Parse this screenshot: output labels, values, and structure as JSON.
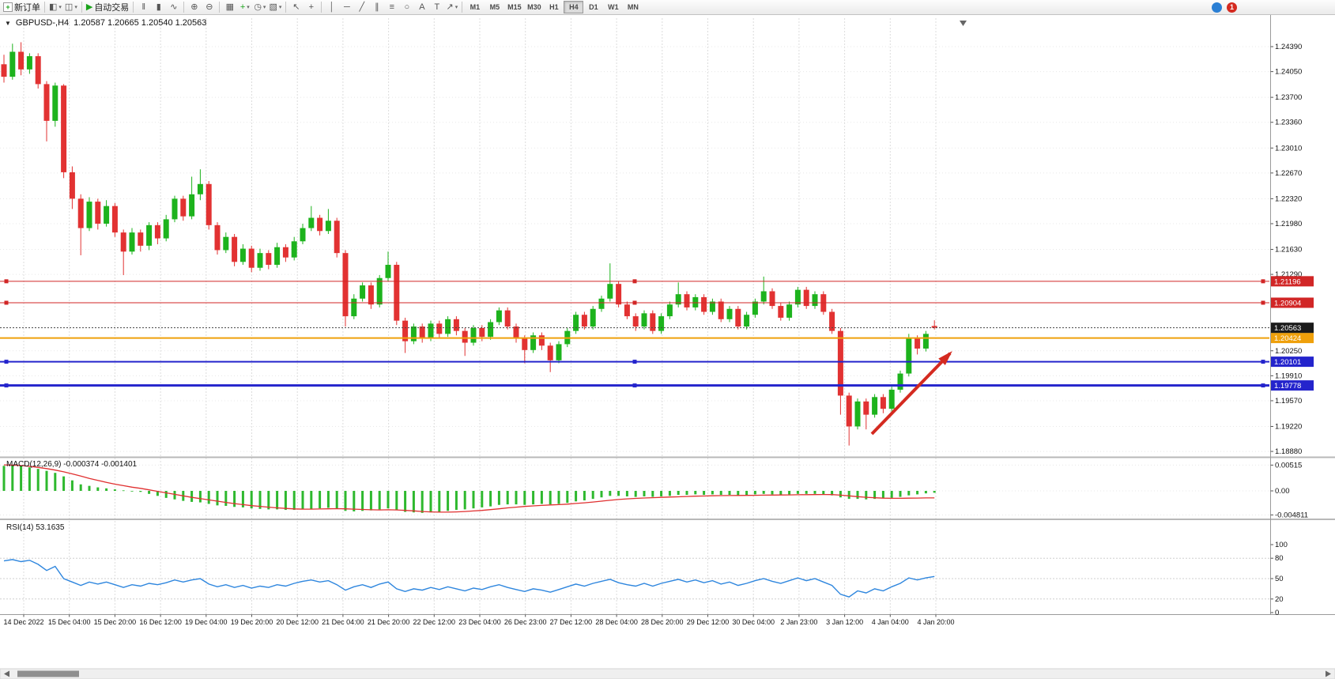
{
  "toolbar": {
    "new_order_label": "新订单",
    "autotrading_label": "自动交易",
    "timeframes": [
      "M1",
      "M5",
      "M15",
      "M30",
      "H1",
      "H4",
      "D1",
      "W1",
      "MN"
    ],
    "active_timeframe": "H4",
    "notification_count": "1"
  },
  "icons": {
    "new_order": "+",
    "new_chart": "◧",
    "profiles": "◫",
    "play": "▶",
    "bar_chart": "‖",
    "candle_chart": "▮",
    "line_chart": "∿",
    "zoom_in": "⊕",
    "zoom_out": "⊖",
    "tile": "▦",
    "indicators": "+",
    "periods": "◷",
    "templates": "▧",
    "caret": "▾",
    "cursor": "↖",
    "crosshair": "+",
    "vline": "│",
    "hline": "─",
    "trendline": "╱",
    "channel": "∥",
    "fibonacci": "≡",
    "shapes": "○",
    "text": "A",
    "text_label": "T",
    "arrows": "↗"
  },
  "chart": {
    "symbol_label": "GBPUSD-,H4",
    "ohlc": "1.20587 1.20665 1.20540 1.20563",
    "macd_label": "MACD(12,26,9)",
    "macd_values": "-0.000374 -0.001401",
    "rsi_label": "RSI(14)",
    "rsi_value": "53.1635"
  },
  "chart_data": {
    "type": "candlestick",
    "symbol": "GBPUSD",
    "timeframe": "H4",
    "x_labels": [
      "14 Dec 2022",
      "15 Dec 04:00",
      "15 Dec 20:00",
      "16 Dec 12:00",
      "19 Dec 04:00",
      "19 Dec 20:00",
      "20 Dec 12:00",
      "21 Dec 04:00",
      "21 Dec 20:00",
      "22 Dec 12:00",
      "23 Dec 04:00",
      "26 Dec 23:00",
      "27 Dec 12:00",
      "28 Dec 04:00",
      "28 Dec 20:00",
      "29 Dec 12:00",
      "30 Dec 04:00",
      "2 Jan 23:00",
      "3 Jan 12:00",
      "4 Jan 04:00",
      "4 Jan 20:00"
    ],
    "price_axis": [
      "1.24390",
      "1.24050",
      "1.23700",
      "1.23360",
      "1.23010",
      "1.22670",
      "1.22320",
      "1.21980",
      "1.21630",
      "1.21290",
      "1.20250",
      "1.19910",
      "1.19570",
      "1.19220",
      "1.18880"
    ],
    "current_price": 1.20563,
    "current_price_label": "1.20563",
    "hlines": [
      {
        "price": 1.21196,
        "label": "1.21196",
        "color": "#d12626",
        "width": 1,
        "handles": true
      },
      {
        "price": 1.20904,
        "label": "1.20904",
        "color": "#d12626",
        "width": 1,
        "handles": true
      },
      {
        "price": 1.20424,
        "label": "1.20424",
        "color": "#efa00b",
        "width": 2,
        "handles": false
      },
      {
        "price": 1.20101,
        "label": "1.20101",
        "color": "#2424cc",
        "width": 2,
        "handles": true
      },
      {
        "price": 1.19778,
        "label": "1.19778",
        "color": "#2424cc",
        "width": 3,
        "handles": true
      }
    ],
    "candles": [
      [
        1.2415,
        1.2428,
        1.239,
        1.2398
      ],
      [
        1.2398,
        1.2443,
        1.2394,
        1.2432
      ],
      [
        1.2432,
        1.2445,
        1.24,
        1.2408
      ],
      [
        1.2408,
        1.243,
        1.2402,
        1.2426
      ],
      [
        1.2426,
        1.243,
        1.2382,
        1.2388
      ],
      [
        1.2388,
        1.2392,
        1.231,
        1.2338
      ],
      [
        1.2338,
        1.239,
        1.233,
        1.2386
      ],
      [
        1.2386,
        1.2388,
        1.226,
        1.2268
      ],
      [
        1.2268,
        1.2276,
        1.2218,
        1.2232
      ],
      [
        1.2232,
        1.2238,
        1.2155,
        1.2192
      ],
      [
        1.2192,
        1.2234,
        1.2188,
        1.2228
      ],
      [
        1.2228,
        1.2232,
        1.219,
        1.2198
      ],
      [
        1.2198,
        1.223,
        1.2194,
        1.2222
      ],
      [
        1.2222,
        1.2226,
        1.218,
        1.2186
      ],
      [
        1.2186,
        1.219,
        1.2128,
        1.216
      ],
      [
        1.216,
        1.2192,
        1.2156,
        1.2186
      ],
      [
        1.2186,
        1.219,
        1.216,
        1.2168
      ],
      [
        1.2168,
        1.22,
        1.2162,
        1.2196
      ],
      [
        1.2196,
        1.22,
        1.217,
        1.2178
      ],
      [
        1.2178,
        1.221,
        1.2174,
        1.2204
      ],
      [
        1.2204,
        1.2236,
        1.22,
        1.2232
      ],
      [
        1.2232,
        1.2236,
        1.2202,
        1.2208
      ],
      [
        1.2208,
        1.2262,
        1.2204,
        1.2238
      ],
      [
        1.2238,
        1.2272,
        1.223,
        1.2252
      ],
      [
        1.2252,
        1.2256,
        1.219,
        1.2196
      ],
      [
        1.2196,
        1.22,
        1.2156,
        1.2162
      ],
      [
        1.2162,
        1.2186,
        1.2158,
        1.218
      ],
      [
        1.218,
        1.2184,
        1.214,
        1.2146
      ],
      [
        1.2146,
        1.217,
        1.2142,
        1.2164
      ],
      [
        1.2164,
        1.2168,
        1.2132,
        1.2138
      ],
      [
        1.2138,
        1.2164,
        1.2134,
        1.2158
      ],
      [
        1.2158,
        1.2162,
        1.2136,
        1.2142
      ],
      [
        1.2142,
        1.2172,
        1.2138,
        1.2166
      ],
      [
        1.2166,
        1.217,
        1.2146,
        1.2152
      ],
      [
        1.2152,
        1.218,
        1.2148,
        1.2174
      ],
      [
        1.2174,
        1.2198,
        1.217,
        1.2192
      ],
      [
        1.2192,
        1.2222,
        1.2188,
        1.2206
      ],
      [
        1.2206,
        1.221,
        1.2182,
        1.2188
      ],
      [
        1.2188,
        1.2218,
        1.2184,
        1.2202
      ],
      [
        1.2202,
        1.2206,
        1.2152,
        1.2158
      ],
      [
        1.2158,
        1.2162,
        1.2058,
        1.2072
      ],
      [
        1.2072,
        1.2102,
        1.2068,
        1.2096
      ],
      [
        1.2096,
        1.2118,
        1.2092,
        1.2114
      ],
      [
        1.2114,
        1.2118,
        1.2082,
        1.2088
      ],
      [
        1.2088,
        1.2128,
        1.2084,
        1.2124
      ],
      [
        1.2124,
        1.216,
        1.212,
        1.2142
      ],
      [
        1.2142,
        1.2146,
        1.206,
        1.2066
      ],
      [
        1.2066,
        1.207,
        1.2022,
        1.2038
      ],
      [
        1.2038,
        1.2062,
        1.2034,
        1.2058
      ],
      [
        1.2058,
        1.2062,
        1.2036,
        1.2042
      ],
      [
        1.2042,
        1.2066,
        1.2038,
        1.2062
      ],
      [
        1.2062,
        1.2066,
        1.2042,
        1.2048
      ],
      [
        1.2048,
        1.2072,
        1.2044,
        1.2068
      ],
      [
        1.2068,
        1.2072,
        1.2046,
        1.2052
      ],
      [
        1.2052,
        1.2056,
        1.2018,
        1.2036
      ],
      [
        1.2036,
        1.206,
        1.2032,
        1.2056
      ],
      [
        1.2056,
        1.206,
        1.2038,
        1.2044
      ],
      [
        1.2044,
        1.2068,
        1.204,
        1.2064
      ],
      [
        1.2064,
        1.2084,
        1.206,
        1.208
      ],
      [
        1.208,
        1.2084,
        1.2054,
        1.2058
      ],
      [
        1.2058,
        1.2062,
        1.2036,
        1.2042
      ],
      [
        1.2042,
        1.2046,
        1.2008,
        1.2026
      ],
      [
        1.2026,
        1.205,
        1.2022,
        1.2046
      ],
      [
        1.2046,
        1.205,
        1.2026,
        1.2032
      ],
      [
        1.2032,
        1.2036,
        1.1996,
        1.2012
      ],
      [
        1.2012,
        1.2038,
        1.2008,
        1.2034
      ],
      [
        1.2034,
        1.2056,
        1.203,
        1.2052
      ],
      [
        1.2052,
        1.2078,
        1.2048,
        1.2074
      ],
      [
        1.2074,
        1.2078,
        1.2054,
        1.2058
      ],
      [
        1.2058,
        1.2086,
        1.2054,
        1.2082
      ],
      [
        1.2082,
        1.21,
        1.2078,
        1.2096
      ],
      [
        1.2096,
        1.2144,
        1.2092,
        1.2116
      ],
      [
        1.2116,
        1.212,
        1.2084,
        1.2088
      ],
      [
        1.2088,
        1.2092,
        1.2068,
        1.2072
      ],
      [
        1.2072,
        1.2076,
        1.2052,
        1.2058
      ],
      [
        1.2058,
        1.208,
        1.2054,
        1.2076
      ],
      [
        1.2076,
        1.208,
        1.2048,
        1.2052
      ],
      [
        1.2052,
        1.2076,
        1.2048,
        1.2072
      ],
      [
        1.2072,
        1.2092,
        1.2068,
        1.2088
      ],
      [
        1.2088,
        1.2118,
        1.2084,
        1.2102
      ],
      [
        1.2102,
        1.2106,
        1.208,
        1.2084
      ],
      [
        1.2084,
        1.2102,
        1.208,
        1.2098
      ],
      [
        1.2098,
        1.2102,
        1.2074,
        1.2078
      ],
      [
        1.2078,
        1.2096,
        1.2074,
        1.2092
      ],
      [
        1.2092,
        1.2096,
        1.2064,
        1.2068
      ],
      [
        1.2068,
        1.2086,
        1.2064,
        1.2082
      ],
      [
        1.2082,
        1.2086,
        1.2054,
        1.2058
      ],
      [
        1.2058,
        1.2078,
        1.2054,
        1.2074
      ],
      [
        1.2074,
        1.2096,
        1.207,
        1.2092
      ],
      [
        1.2092,
        1.2126,
        1.2088,
        1.2106
      ],
      [
        1.2106,
        1.211,
        1.2082,
        1.2086
      ],
      [
        1.2086,
        1.209,
        1.2066,
        1.207
      ],
      [
        1.207,
        1.2092,
        1.2066,
        1.2088
      ],
      [
        1.2088,
        1.2112,
        1.2084,
        1.2108
      ],
      [
        1.2108,
        1.2112,
        1.2082,
        1.2086
      ],
      [
        1.2086,
        1.2106,
        1.2082,
        1.2102
      ],
      [
        1.2102,
        1.2106,
        1.2074,
        1.2078
      ],
      [
        1.2078,
        1.2082,
        1.2048,
        1.2052
      ],
      [
        1.2052,
        1.2056,
        1.1938,
        1.1964
      ],
      [
        1.1964,
        1.1968,
        1.1896,
        1.1922
      ],
      [
        1.1922,
        1.196,
        1.1918,
        1.1956
      ],
      [
        1.1956,
        1.196,
        1.1918,
        1.1938
      ],
      [
        1.1938,
        1.1966,
        1.1934,
        1.1962
      ],
      [
        1.1962,
        1.1966,
        1.194,
        1.1946
      ],
      [
        1.1946,
        1.1976,
        1.1942,
        1.1972
      ],
      [
        1.1972,
        1.1998,
        1.1968,
        1.1994
      ],
      [
        1.1994,
        1.2048,
        1.199,
        1.2042
      ],
      [
        1.2042,
        1.2046,
        1.202,
        1.2028
      ],
      [
        1.2028,
        1.2052,
        1.2024,
        1.2048
      ],
      [
        1.20587,
        1.20665,
        1.2054,
        1.20563
      ]
    ],
    "indicators": {
      "macd": {
        "axis": [
          "0.00515",
          "0.00",
          "-0.004811"
        ],
        "histogram": [
          0.005,
          0.00512,
          0.00495,
          0.0047,
          0.0044,
          0.004,
          0.0036,
          0.0029,
          0.0021,
          0.0013,
          0.001,
          0.0007,
          0.0005,
          0.0003,
          0.0001,
          0.0,
          -0.0002,
          -0.0006,
          -0.001,
          -0.0014,
          -0.0017,
          -0.002,
          -0.0022,
          -0.0023,
          -0.0026,
          -0.0029,
          -0.003,
          -0.0032,
          -0.0033,
          -0.0035,
          -0.0036,
          -0.0037,
          -0.0037,
          -0.0038,
          -0.0038,
          -0.0037,
          -0.0036,
          -0.0035,
          -0.0034,
          -0.0036,
          -0.004,
          -0.0041,
          -0.004,
          -0.0039,
          -0.0037,
          -0.0035,
          -0.0038,
          -0.0042,
          -0.0043,
          -0.0044,
          -0.0043,
          -0.0042,
          -0.004,
          -0.0038,
          -0.0037,
          -0.0035,
          -0.0033,
          -0.0031,
          -0.0028,
          -0.0027,
          -0.0027,
          -0.0028,
          -0.0027,
          -0.0026,
          -0.0027,
          -0.0026,
          -0.0024,
          -0.0021,
          -0.0019,
          -0.0016,
          -0.0013,
          -0.001,
          -0.001,
          -0.0011,
          -0.0012,
          -0.0011,
          -0.0012,
          -0.0011,
          -0.001,
          -0.0008,
          -0.0008,
          -0.0007,
          -0.0008,
          -0.0007,
          -0.0008,
          -0.0008,
          -0.0009,
          -0.0008,
          -0.0007,
          -0.0006,
          -0.0007,
          -0.0008,
          -0.0007,
          -0.0006,
          -0.0006,
          -0.0006,
          -0.0007,
          -0.0009,
          -0.0013,
          -0.0016,
          -0.0016,
          -0.0017,
          -0.0016,
          -0.0015,
          -0.0014,
          -0.0012,
          -0.0009,
          -0.0007,
          -0.0005,
          -0.000374
        ],
        "signal": [
          0.0052,
          0.00515,
          0.00505,
          0.0049,
          0.0047,
          0.00445,
          0.00415,
          0.0038,
          0.0034,
          0.00295,
          0.0025,
          0.0021,
          0.0017,
          0.00135,
          0.00105,
          0.00075,
          0.0005,
          0.0002,
          -0.0001,
          -0.0004,
          -0.0007,
          -0.001,
          -0.0013,
          -0.00155,
          -0.0018,
          -0.00205,
          -0.0023,
          -0.00255,
          -0.00275,
          -0.00295,
          -0.0031,
          -0.00325,
          -0.0034,
          -0.0035,
          -0.0036,
          -0.00365,
          -0.00365,
          -0.00362,
          -0.00358,
          -0.00355,
          -0.00358,
          -0.00365,
          -0.00372,
          -0.00378,
          -0.0038,
          -0.00378,
          -0.0038,
          -0.0039,
          -0.004,
          -0.00412,
          -0.0042,
          -0.00425,
          -0.00425,
          -0.0042,
          -0.00412,
          -0.00402,
          -0.0039,
          -0.00375,
          -0.00358,
          -0.0034,
          -0.00325,
          -0.00312,
          -0.003,
          -0.0029,
          -0.00282,
          -0.00275,
          -0.00265,
          -0.00252,
          -0.00238,
          -0.00222,
          -0.00205,
          -0.00188,
          -0.00172,
          -0.0016,
          -0.0015,
          -0.00142,
          -0.00136,
          -0.0013,
          -0.00124,
          -0.00118,
          -0.00112,
          -0.00106,
          -0.00102,
          -0.00098,
          -0.00095,
          -0.00093,
          -0.00092,
          -0.0009,
          -0.00088,
          -0.00085,
          -0.00083,
          -0.00082,
          -0.0008,
          -0.00078,
          -0.00076,
          -0.00074,
          -0.00073,
          -0.00075,
          -0.00085,
          -0.001,
          -0.00115,
          -0.00128,
          -0.00138,
          -0.00145,
          -0.00148,
          -0.00148,
          -0.00146,
          -0.00143,
          -0.00141,
          -0.001401
        ]
      },
      "rsi": {
        "axis": [
          "100",
          "80",
          "50",
          "20",
          "0"
        ],
        "levels": [
          80,
          50,
          20
        ],
        "values": [
          76,
          78,
          75,
          77,
          71,
          62,
          68,
          50,
          45,
          40,
          45,
          42,
          45,
          41,
          37,
          41,
          39,
          43,
          41,
          44,
          48,
          45,
          48,
          50,
          42,
          38,
          41,
          37,
          40,
          36,
          39,
          37,
          41,
          39,
          43,
          46,
          48,
          45,
          47,
          41,
          33,
          38,
          41,
          37,
          42,
          45,
          35,
          31,
          35,
          33,
          37,
          34,
          38,
          35,
          32,
          36,
          34,
          38,
          41,
          37,
          34,
          31,
          35,
          33,
          30,
          34,
          38,
          42,
          39,
          43,
          46,
          49,
          44,
          41,
          39,
          43,
          39,
          43,
          46,
          49,
          45,
          48,
          44,
          47,
          42,
          45,
          40,
          43,
          47,
          50,
          46,
          43,
          47,
          51,
          47,
          50,
          45,
          40,
          27,
          23,
          32,
          29,
          35,
          32,
          38,
          43,
          51,
          48,
          51,
          53.16
        ]
      }
    },
    "annotation_arrow": {
      "from": [
        1103,
        549
      ],
      "to": [
        1202,
        447
      ],
      "color": "#d42a20"
    }
  }
}
